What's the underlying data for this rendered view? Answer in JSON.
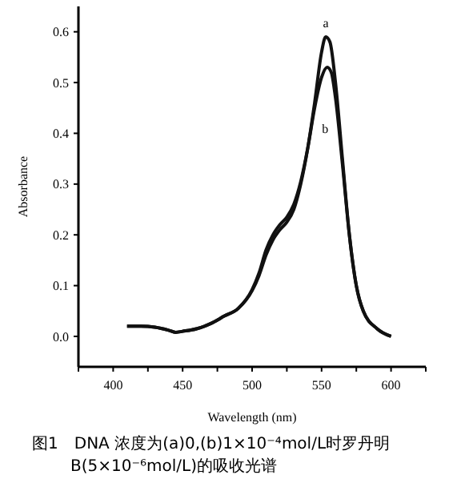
{
  "chart_data": {
    "type": "line",
    "xlabel": "Wavelength (nm)",
    "ylabel": "Absorbance",
    "xlim": [
      375,
      625
    ],
    "xticks": [
      {
        "value": 375,
        "label": null
      },
      400,
      {
        "value": 425,
        "label": null
      },
      450,
      {
        "value": 475,
        "label": null
      },
      500,
      {
        "value": 525,
        "label": null
      },
      550,
      {
        "value": 575,
        "label": null
      },
      600,
      {
        "value": 625,
        "label": null
      }
    ],
    "ylim": [
      -0.06,
      0.65
    ],
    "yticks": [
      {
        "value": 0,
        "label": "0.0"
      },
      0.1,
      0.2,
      0.3,
      0.4,
      0.5,
      0.6
    ],
    "grid": false,
    "marker": "none",
    "line_style": "solid",
    "series": [
      {
        "color": "#111111",
        "x": [
          410,
          420,
          430,
          440,
          445,
          450,
          460,
          470,
          480,
          490,
          500,
          505,
          510,
          515,
          520,
          525,
          530,
          535,
          540,
          545,
          550,
          553,
          556,
          560,
          565,
          570,
          575,
          580,
          590,
          600
        ],
        "values": [
          0.02,
          0.02,
          0.018,
          0.012,
          0.008,
          0.01,
          0.015,
          0.025,
          0.04,
          0.055,
          0.09,
          0.12,
          0.16,
          0.19,
          0.21,
          0.225,
          0.25,
          0.3,
          0.37,
          0.46,
          0.56,
          0.59,
          0.58,
          0.5,
          0.35,
          0.2,
          0.1,
          0.05,
          0.015,
          0.0
        ]
      },
      {
        "color": "#111111",
        "x": [
          410,
          420,
          430,
          440,
          445,
          450,
          460,
          470,
          480,
          490,
          500,
          505,
          510,
          515,
          520,
          525,
          530,
          535,
          540,
          545,
          550,
          554,
          557,
          560,
          565,
          570,
          575,
          580,
          590,
          600
        ],
        "values": [
          0.02,
          0.02,
          0.018,
          0.012,
          0.008,
          0.01,
          0.015,
          0.025,
          0.04,
          0.055,
          0.092,
          0.125,
          0.17,
          0.2,
          0.22,
          0.235,
          0.26,
          0.305,
          0.37,
          0.45,
          0.51,
          0.53,
          0.52,
          0.47,
          0.34,
          0.2,
          0.1,
          0.05,
          0.015,
          0.0
        ]
      }
    ],
    "annotations": [
      {
        "text": "a",
        "x": 553,
        "y": 0.59
      },
      {
        "text": "b",
        "x": 563,
        "y": 0.41
      },
      "图1　DNA 浓度为(a)0,(b)1×10⁻⁴mol/L时罗丹明B(5×10⁻⁶mol/L)的吸收光谱"
    ]
  }
}
